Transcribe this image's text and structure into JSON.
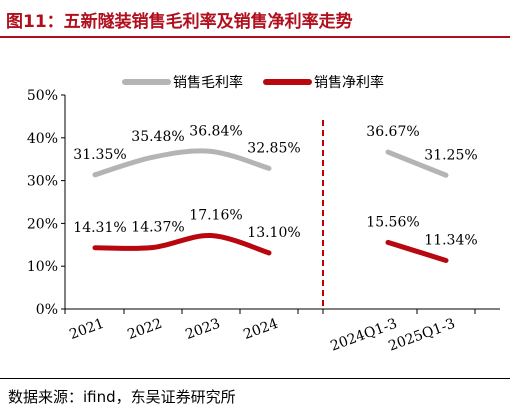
{
  "title": "图11：五新隧装销售毛利率及销售净利率走势",
  "source": "数据来源：ifind，东吴证券研究所",
  "colors": {
    "title": "#b0101e",
    "gross": "#b4b4b4",
    "net": "#b8070f",
    "divider": "#c00000"
  },
  "chart_data": {
    "type": "line",
    "categories": [
      "2021",
      "2022",
      "2023",
      "2024",
      "2024Q1-3",
      "2025Q1-3"
    ],
    "ylim": [
      0,
      50
    ],
    "yticks": [
      "0%",
      "10%",
      "20%",
      "30%",
      "40%",
      "50%"
    ],
    "legend": "top-center",
    "series": [
      {
        "name": "销售毛利率",
        "values": [
          31.35,
          35.48,
          36.84,
          32.85,
          36.67,
          31.25
        ],
        "labels": [
          "31.35%",
          "35.48%",
          "36.84%",
          "32.85%",
          "36.67%",
          "31.25%"
        ]
      },
      {
        "name": "销售净利率",
        "values": [
          14.31,
          14.37,
          17.16,
          13.1,
          15.56,
          11.34
        ],
        "labels": [
          "14.31%",
          "14.37%",
          "17.16%",
          "13.10%",
          "15.56%",
          "11.34%"
        ]
      }
    ],
    "segments": [
      [
        0,
        3
      ],
      [
        4,
        5
      ]
    ]
  }
}
